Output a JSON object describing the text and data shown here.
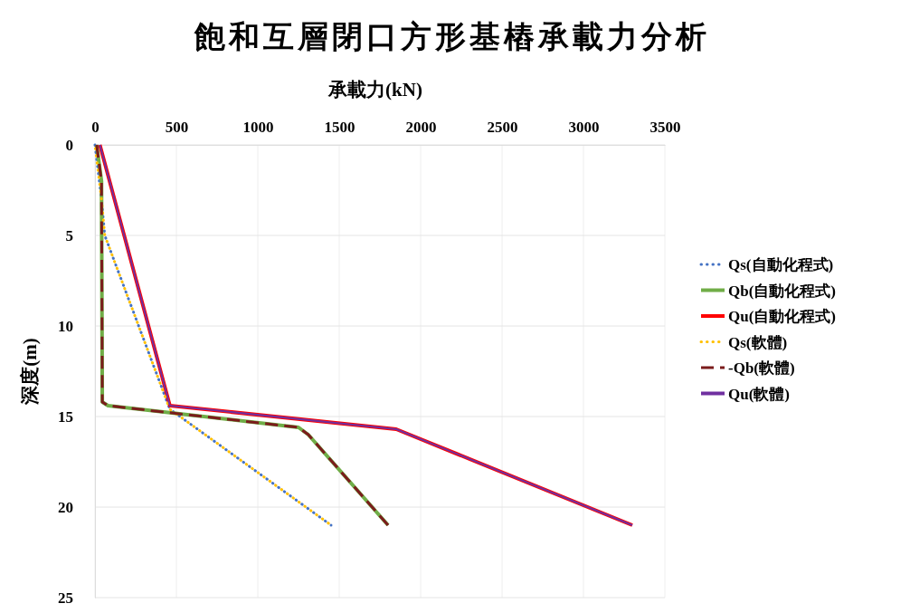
{
  "chart_data": {
    "type": "line",
    "title": "飽和互層閉口方形基樁承載力分析",
    "xlabel": "承載力(kN)",
    "ylabel": "深度(m)",
    "xlim": [
      0,
      3500
    ],
    "xticks": [
      0,
      500,
      1000,
      1500,
      2000,
      2500,
      3000,
      3500
    ],
    "ylim": [
      25,
      0
    ],
    "yticks": [
      0,
      5,
      10,
      15,
      20,
      25
    ],
    "grid": true,
    "legend": "right",
    "marker": "none",
    "series": [
      {
        "name": "Qs(自動化程式)",
        "color": "#4472c4",
        "line_style": "dotted",
        "x": [
          0,
          40,
          60,
          460,
          1450
        ],
        "values": [
          0,
          3,
          5,
          14.6,
          21
        ]
      },
      {
        "name": "Qb(自動化程式)",
        "color": "#70ad47",
        "line_style": "solid",
        "x": [
          10,
          40,
          45,
          80,
          1250,
          1310,
          1800
        ],
        "values": [
          0,
          2,
          14.2,
          14.4,
          15.6,
          16,
          21
        ]
      },
      {
        "name": "Qu(自動化程式)",
        "color": "#ff0000",
        "line_style": "solid",
        "x": [
          30,
          460,
          1850,
          3300
        ],
        "values": [
          0,
          14.4,
          15.7,
          21
        ]
      },
      {
        "name": "Qs(軟體)",
        "color": "#ffc000",
        "line_style": "dotted",
        "x": [
          0,
          40,
          60,
          460,
          1450
        ],
        "values": [
          0,
          3,
          5,
          14.6,
          21
        ]
      },
      {
        "name": "-Qb(軟體)",
        "color": "#7b1c1c",
        "line_style": "dashed",
        "x": [
          10,
          40,
          45,
          80,
          1250,
          1310,
          1800
        ],
        "values": [
          0,
          2,
          14.2,
          14.4,
          15.6,
          16,
          21
        ]
      },
      {
        "name": "Qu(軟體)",
        "color": "#7030a0",
        "line_style": "solid",
        "x": [
          30,
          460,
          1850,
          3300
        ],
        "values": [
          0,
          14.4,
          15.7,
          21
        ]
      }
    ]
  }
}
